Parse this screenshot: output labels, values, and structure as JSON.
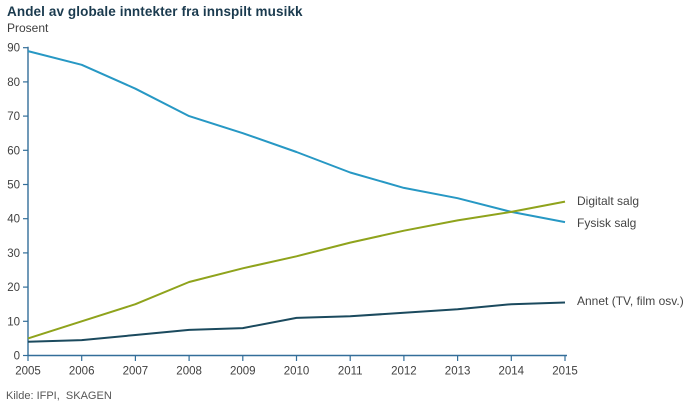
{
  "header": {
    "title": "Andel av globale inntekter fra innspilt musikk",
    "unit_label": "Prosent"
  },
  "footer": {
    "source": "Kilde: IFPI,  SKAGEN"
  },
  "chart_data": {
    "type": "line",
    "title": "Andel av globale inntekter fra innspilt musikk",
    "ylabel": "Prosent",
    "xlabel": "",
    "x": [
      2005,
      2006,
      2007,
      2008,
      2009,
      2010,
      2011,
      2012,
      2013,
      2014,
      2015
    ],
    "series": [
      {
        "name": "Fysisk salg",
        "color": "#2798c4",
        "values": [
          89,
          85,
          78,
          70,
          65,
          59.5,
          53.5,
          49,
          46,
          42,
          39
        ]
      },
      {
        "name": "Digitalt salg",
        "color": "#8fa31c",
        "values": [
          5,
          10,
          15,
          21.5,
          25.5,
          29,
          33,
          36.5,
          39.5,
          42,
          45
        ]
      },
      {
        "name": "Annet (TV, film osv.)",
        "color": "#1b4a5e",
        "values": [
          4,
          4.5,
          6,
          7.5,
          8,
          11,
          11.5,
          12.5,
          13.5,
          15,
          15.5
        ]
      }
    ],
    "ylim": [
      0,
      90
    ],
    "yticks": [
      0,
      10,
      20,
      30,
      40,
      50,
      60,
      70,
      80,
      90
    ],
    "grid": false,
    "legend_position": "right-end-labels",
    "axis_color": "#336e99",
    "tick_label_color": "#404040",
    "source": "Kilde: IFPI,  SKAGEN"
  }
}
